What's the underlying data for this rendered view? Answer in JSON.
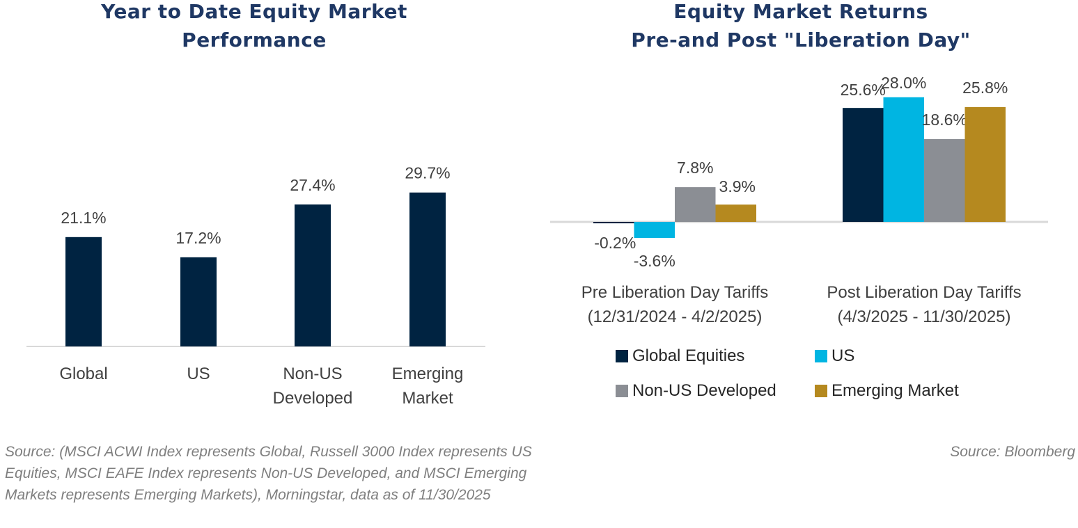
{
  "chart_data": [
    {
      "type": "bar",
      "title": "Year to Date Equity Market Performance",
      "title_lines": [
        "Year to Date Equity Market",
        "Performance"
      ],
      "categories": [
        "Global",
        "US",
        "Non-US Developed",
        "Emerging Market"
      ],
      "category_lines": [
        [
          "Global"
        ],
        [
          "US"
        ],
        [
          "Non-US",
          "Developed"
        ],
        [
          "Emerging",
          "Market"
        ]
      ],
      "values": [
        21.1,
        17.2,
        27.4,
        29.7
      ],
      "data_labels": [
        "21.1%",
        "17.2%",
        "27.4%",
        "29.7%"
      ],
      "color": "#002341",
      "xlabel": "",
      "ylabel": "",
      "ylim": [
        0,
        35
      ],
      "grid": false,
      "legend": "none",
      "source": "Source: (MSCI ACWI Index represents Global, Russell 3000 Index represents US Equities, MSCI EAFE Index represents Non-US Developed, and MSCI Emerging Markets represents Emerging Markets), Morningstar, data as of 11/30/2025"
    },
    {
      "type": "bar",
      "title": "Equity Market Returns Pre-and Post \"Liberation Day\"",
      "title_lines": [
        "Equity Market Returns",
        "Pre-and Post \"Liberation Day\""
      ],
      "categories": [
        "Pre Liberation Day Tariffs (12/31/2024 - 4/2/2025)",
        "Post Liberation Day Tariffs (4/3/2025 - 11/30/2025)"
      ],
      "category_lines": [
        [
          "Pre Liberation Day Tariffs",
          "(12/31/2024 - 4/2/2025)"
        ],
        [
          "Post Liberation Day Tariffs",
          "(4/3/2025 - 11/30/2025)"
        ]
      ],
      "series": [
        {
          "name": "Global Equities",
          "color": "#002341",
          "values": [
            -0.2,
            25.6
          ],
          "labels": [
            "-0.2%",
            "25.6%"
          ]
        },
        {
          "name": "US",
          "color": "#00b5e2",
          "values": [
            -3.6,
            28.0
          ],
          "labels": [
            "-3.6%",
            "28.0%"
          ]
        },
        {
          "name": "Non-US Developed",
          "color": "#8b8e94",
          "values": [
            7.8,
            18.6
          ],
          "labels": [
            "7.8%",
            "18.6%"
          ]
        },
        {
          "name": "Emerging Market",
          "color": "#b5891f",
          "values": [
            3.9,
            25.8
          ],
          "labels": [
            "3.9%",
            "25.8%"
          ]
        }
      ],
      "xlabel": "",
      "ylabel": "",
      "ylim": [
        -5,
        30
      ],
      "grid": false,
      "legend": "bottom",
      "source": "Source: Bloomberg"
    }
  ]
}
